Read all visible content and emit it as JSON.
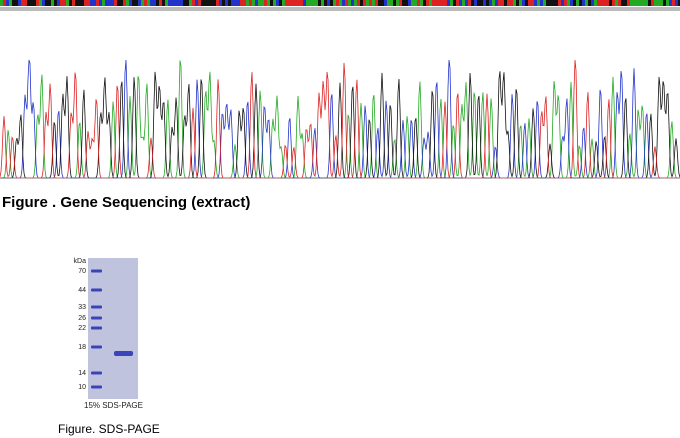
{
  "sequencing": {
    "caption": "Figure . Gene Sequencing (extract)"
  },
  "gel": {
    "unit": "kDa",
    "markers": [
      70,
      44,
      33,
      26,
      22,
      18,
      14,
      10
    ],
    "label": "15% SDS-PAGE",
    "caption": "Figure. SDS-PAGE"
  }
}
